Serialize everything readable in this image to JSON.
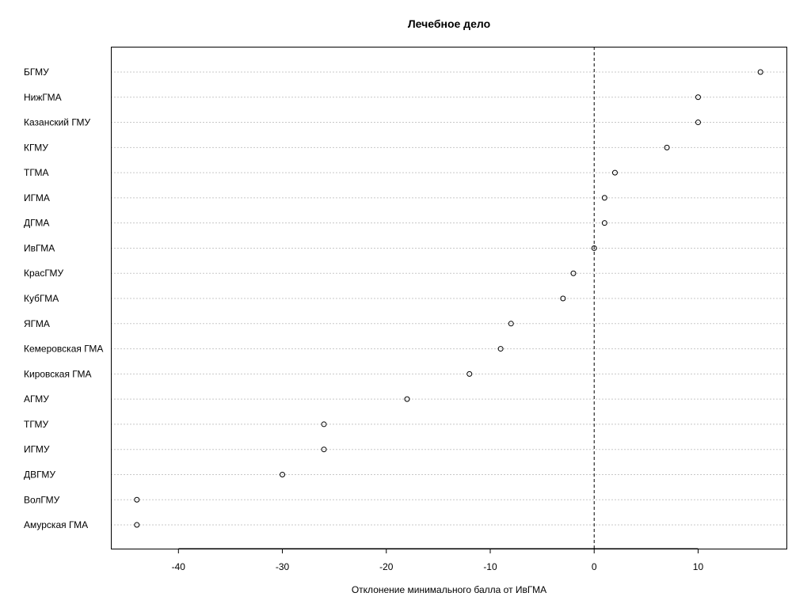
{
  "chart_data": {
    "type": "scatter",
    "title": "Лечебное дело",
    "xlabel": "Отклонение минимального балла от ИвГМА",
    "ylabel": "",
    "xlim": [
      -46.5,
      18.5
    ],
    "xticks": [
      -40,
      -30,
      -20,
      -10,
      0,
      10
    ],
    "xtick_labels": [
      "-40",
      "-30",
      "-20",
      "-10",
      "0",
      "10"
    ],
    "reference_line": 0,
    "grid": "horizontal dotted",
    "categories": [
      "БГМУ",
      "НижГМА",
      "Казанский ГМУ",
      "КГМУ",
      "ТГМА",
      "ИГМА",
      "ДГМА",
      "ИвГМА",
      "КрасГМУ",
      "КубГМА",
      "ЯГМА",
      "Кемеровская ГМА",
      "Кировская ГМА",
      "АГМУ",
      "ТГМУ",
      "ИГМУ",
      "ДВГМУ",
      "ВолГМУ",
      "Амурская ГМА"
    ],
    "values": [
      16,
      10,
      10,
      7,
      2,
      1,
      1,
      0,
      -2,
      -3,
      -8,
      -9,
      -12,
      -18,
      -26,
      -26,
      -30,
      -44,
      -44
    ]
  }
}
